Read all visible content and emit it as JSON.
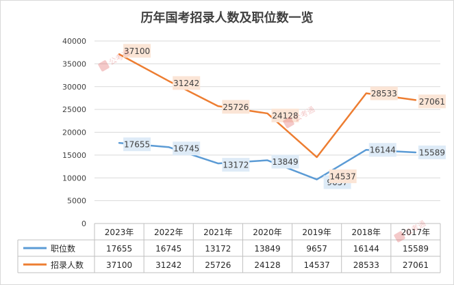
{
  "chart_data": {
    "type": "line",
    "title": "历年国考招录人数及职位数一览",
    "categories": [
      "2023年",
      "2022年",
      "2021年",
      "2020年",
      "2019年",
      "2018年",
      "2017年"
    ],
    "series": [
      {
        "name": "职位数",
        "values": [
          17655,
          16745,
          13172,
          13849,
          9657,
          16144,
          15589
        ],
        "color": "#5b9bd5",
        "label_bg": "#deebf7"
      },
      {
        "name": "招录人数",
        "values": [
          37100,
          31242,
          25726,
          24128,
          14537,
          28533,
          27061
        ],
        "color": "#ed7d31",
        "label_bg": "#fbe5d6"
      }
    ],
    "yticks": [
      "0",
      "5000",
      "10000",
      "15000",
      "20000",
      "25000",
      "30000",
      "35000",
      "40000"
    ],
    "ylim": [
      0,
      40000
    ],
    "grid": true,
    "legend": "data-table"
  },
  "watermark_text": "公考通"
}
